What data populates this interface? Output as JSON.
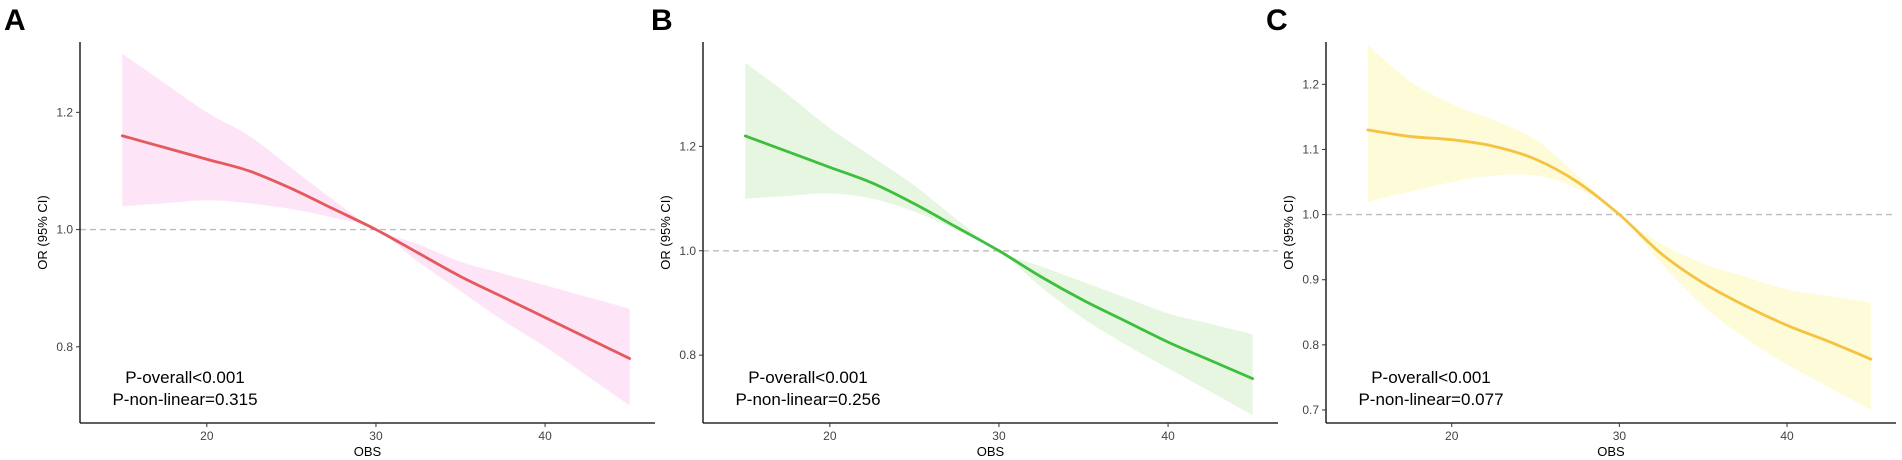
{
  "chart_data": [
    {
      "panel": "A",
      "type": "line",
      "xlabel": "OBS",
      "ylabel": "OR (95% CI)",
      "xlim": [
        12.5,
        46.5
      ],
      "ylim": [
        0.67,
        1.32
      ],
      "xticks": [
        20,
        30,
        40
      ],
      "yticks": [
        0.8,
        1.0,
        1.2
      ],
      "yticklabels": [
        "0.8",
        "1.0",
        "1.2"
      ],
      "reference_line": 1.0,
      "line_color": "#e4595c",
      "ci_color": "#fde4f7",
      "x": [
        15,
        17.5,
        20,
        22.5,
        25,
        27.5,
        30,
        32.5,
        35,
        37.5,
        40,
        42.5,
        45
      ],
      "y": [
        1.16,
        1.14,
        1.12,
        1.1,
        1.07,
        1.035,
        1.0,
        0.96,
        0.92,
        0.885,
        0.85,
        0.815,
        0.78
      ],
      "lower": [
        1.04,
        1.045,
        1.05,
        1.045,
        1.035,
        1.02,
        1.0,
        0.945,
        0.895,
        0.845,
        0.8,
        0.75,
        0.7
      ],
      "upper": [
        1.3,
        1.25,
        1.2,
        1.16,
        1.105,
        1.05,
        1.0,
        0.975,
        0.945,
        0.925,
        0.905,
        0.885,
        0.865
      ],
      "annotations": [
        "P-overall<0.001",
        "P-non-linear=0.315"
      ]
    },
    {
      "panel": "B",
      "type": "line",
      "xlabel": "OBS",
      "ylabel": "OR (95% CI)",
      "xlim": [
        12.5,
        46.5
      ],
      "ylim": [
        0.67,
        1.4
      ],
      "xticks": [
        20,
        30,
        40
      ],
      "yticks": [
        0.8,
        1.0,
        1.2
      ],
      "yticklabels": [
        "0.8",
        "1.0",
        "1.2"
      ],
      "reference_line": 1.0,
      "line_color": "#3cbf3c",
      "ci_color": "#e6f6e1",
      "x": [
        15,
        17.5,
        20,
        22.5,
        25,
        27.5,
        30,
        32.5,
        35,
        37.5,
        40,
        42.5,
        45
      ],
      "y": [
        1.22,
        1.19,
        1.16,
        1.13,
        1.09,
        1.045,
        1.0,
        0.95,
        0.905,
        0.865,
        0.825,
        0.79,
        0.755
      ],
      "lower": [
        1.1,
        1.105,
        1.11,
        1.1,
        1.075,
        1.04,
        1.0,
        0.93,
        0.87,
        0.82,
        0.775,
        0.73,
        0.685
      ],
      "upper": [
        1.36,
        1.3,
        1.235,
        1.18,
        1.125,
        1.06,
        1.0,
        0.97,
        0.94,
        0.91,
        0.88,
        0.86,
        0.84
      ],
      "annotations": [
        "P-overall<0.001",
        "P-non-linear=0.256"
      ]
    },
    {
      "panel": "C",
      "type": "line",
      "xlabel": "OBS",
      "ylabel": "OR (95% CI)",
      "xlim": [
        12.5,
        46.5
      ],
      "ylim": [
        0.68,
        1.265
      ],
      "xticks": [
        20,
        30,
        40
      ],
      "yticks": [
        0.7,
        0.8,
        0.9,
        1.0,
        1.1,
        1.2
      ],
      "yticklabels": [
        "0.7",
        "0.8",
        "0.9",
        "1.0",
        "1.1",
        "1.2"
      ],
      "reference_line": 1.0,
      "line_color": "#f5c242",
      "ci_color": "#fefbd8",
      "x": [
        15,
        17.5,
        20,
        22.5,
        25,
        27.5,
        30,
        32.5,
        35,
        37.5,
        40,
        42.5,
        45
      ],
      "y": [
        1.13,
        1.12,
        1.115,
        1.105,
        1.085,
        1.05,
        1.0,
        0.94,
        0.895,
        0.86,
        0.83,
        0.805,
        0.778
      ],
      "lower": [
        1.02,
        1.035,
        1.05,
        1.06,
        1.06,
        1.04,
        1.0,
        0.925,
        0.86,
        0.81,
        0.77,
        0.735,
        0.7
      ],
      "upper": [
        1.26,
        1.205,
        1.17,
        1.145,
        1.115,
        1.06,
        1.0,
        0.955,
        0.925,
        0.905,
        0.885,
        0.875,
        0.865
      ],
      "annotations": [
        "P-overall<0.001",
        "P-non-linear=0.077"
      ]
    }
  ]
}
